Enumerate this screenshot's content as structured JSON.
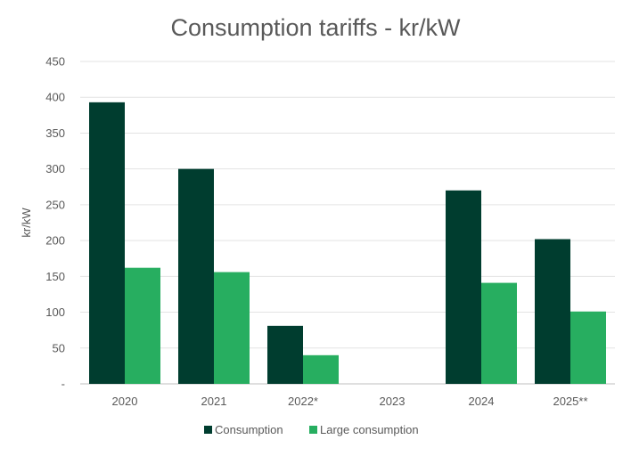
{
  "chart_data": {
    "type": "bar",
    "title": "Consumption tariffs - kr/kW",
    "xlabel": "",
    "ylabel": "kr/kW",
    "ylim": [
      0,
      450
    ],
    "yticks": [
      0,
      50,
      100,
      150,
      200,
      250,
      300,
      350,
      400,
      450
    ],
    "ytick_labels": [
      "-",
      "50",
      "100",
      "150",
      "200",
      "250",
      "300",
      "350",
      "400",
      "450"
    ],
    "categories": [
      "2020",
      "2021",
      "2022*",
      "2023",
      "2024",
      "2025**"
    ],
    "series": [
      {
        "name": "Consumption",
        "color": "#003d2f",
        "values": [
          393,
          300,
          81,
          0,
          270,
          202
        ]
      },
      {
        "name": "Large consumption",
        "color": "#27ae60",
        "values": [
          162,
          156,
          40,
          0,
          141,
          101
        ]
      }
    ],
    "grid": true,
    "legend_position": "bottom"
  }
}
